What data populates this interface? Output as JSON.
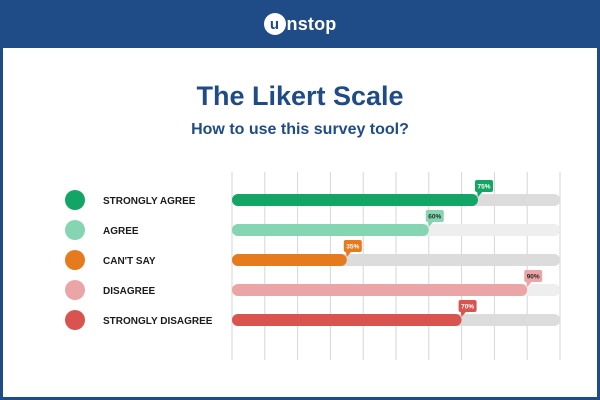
{
  "brand": {
    "logo_letter": "u",
    "logo_text": "nstop"
  },
  "title": "The Likert Scale",
  "subtitle": "How to use this survey tool?",
  "chart_data": {
    "type": "bar",
    "orientation": "horizontal",
    "categories": [
      "STRONGLY AGREE",
      "AGREE",
      "CAN'T SAY",
      "DISAGREE",
      "STRONGLY DISAGREE"
    ],
    "values": [
      75,
      60,
      35,
      90,
      70
    ],
    "value_labels": [
      "75%",
      "60%",
      "35%",
      "90%",
      "70%"
    ],
    "colors": [
      "#13a566",
      "#85d5b3",
      "#e57a1e",
      "#eba5a6",
      "#d9534f"
    ],
    "track_colors": [
      "#dcdcdc",
      "#eeeeee",
      "#dcdcdc",
      "#eeeeee",
      "#dcdcdc"
    ],
    "xlim": [
      0,
      100
    ],
    "grid": true,
    "grid_divisions": 10
  }
}
